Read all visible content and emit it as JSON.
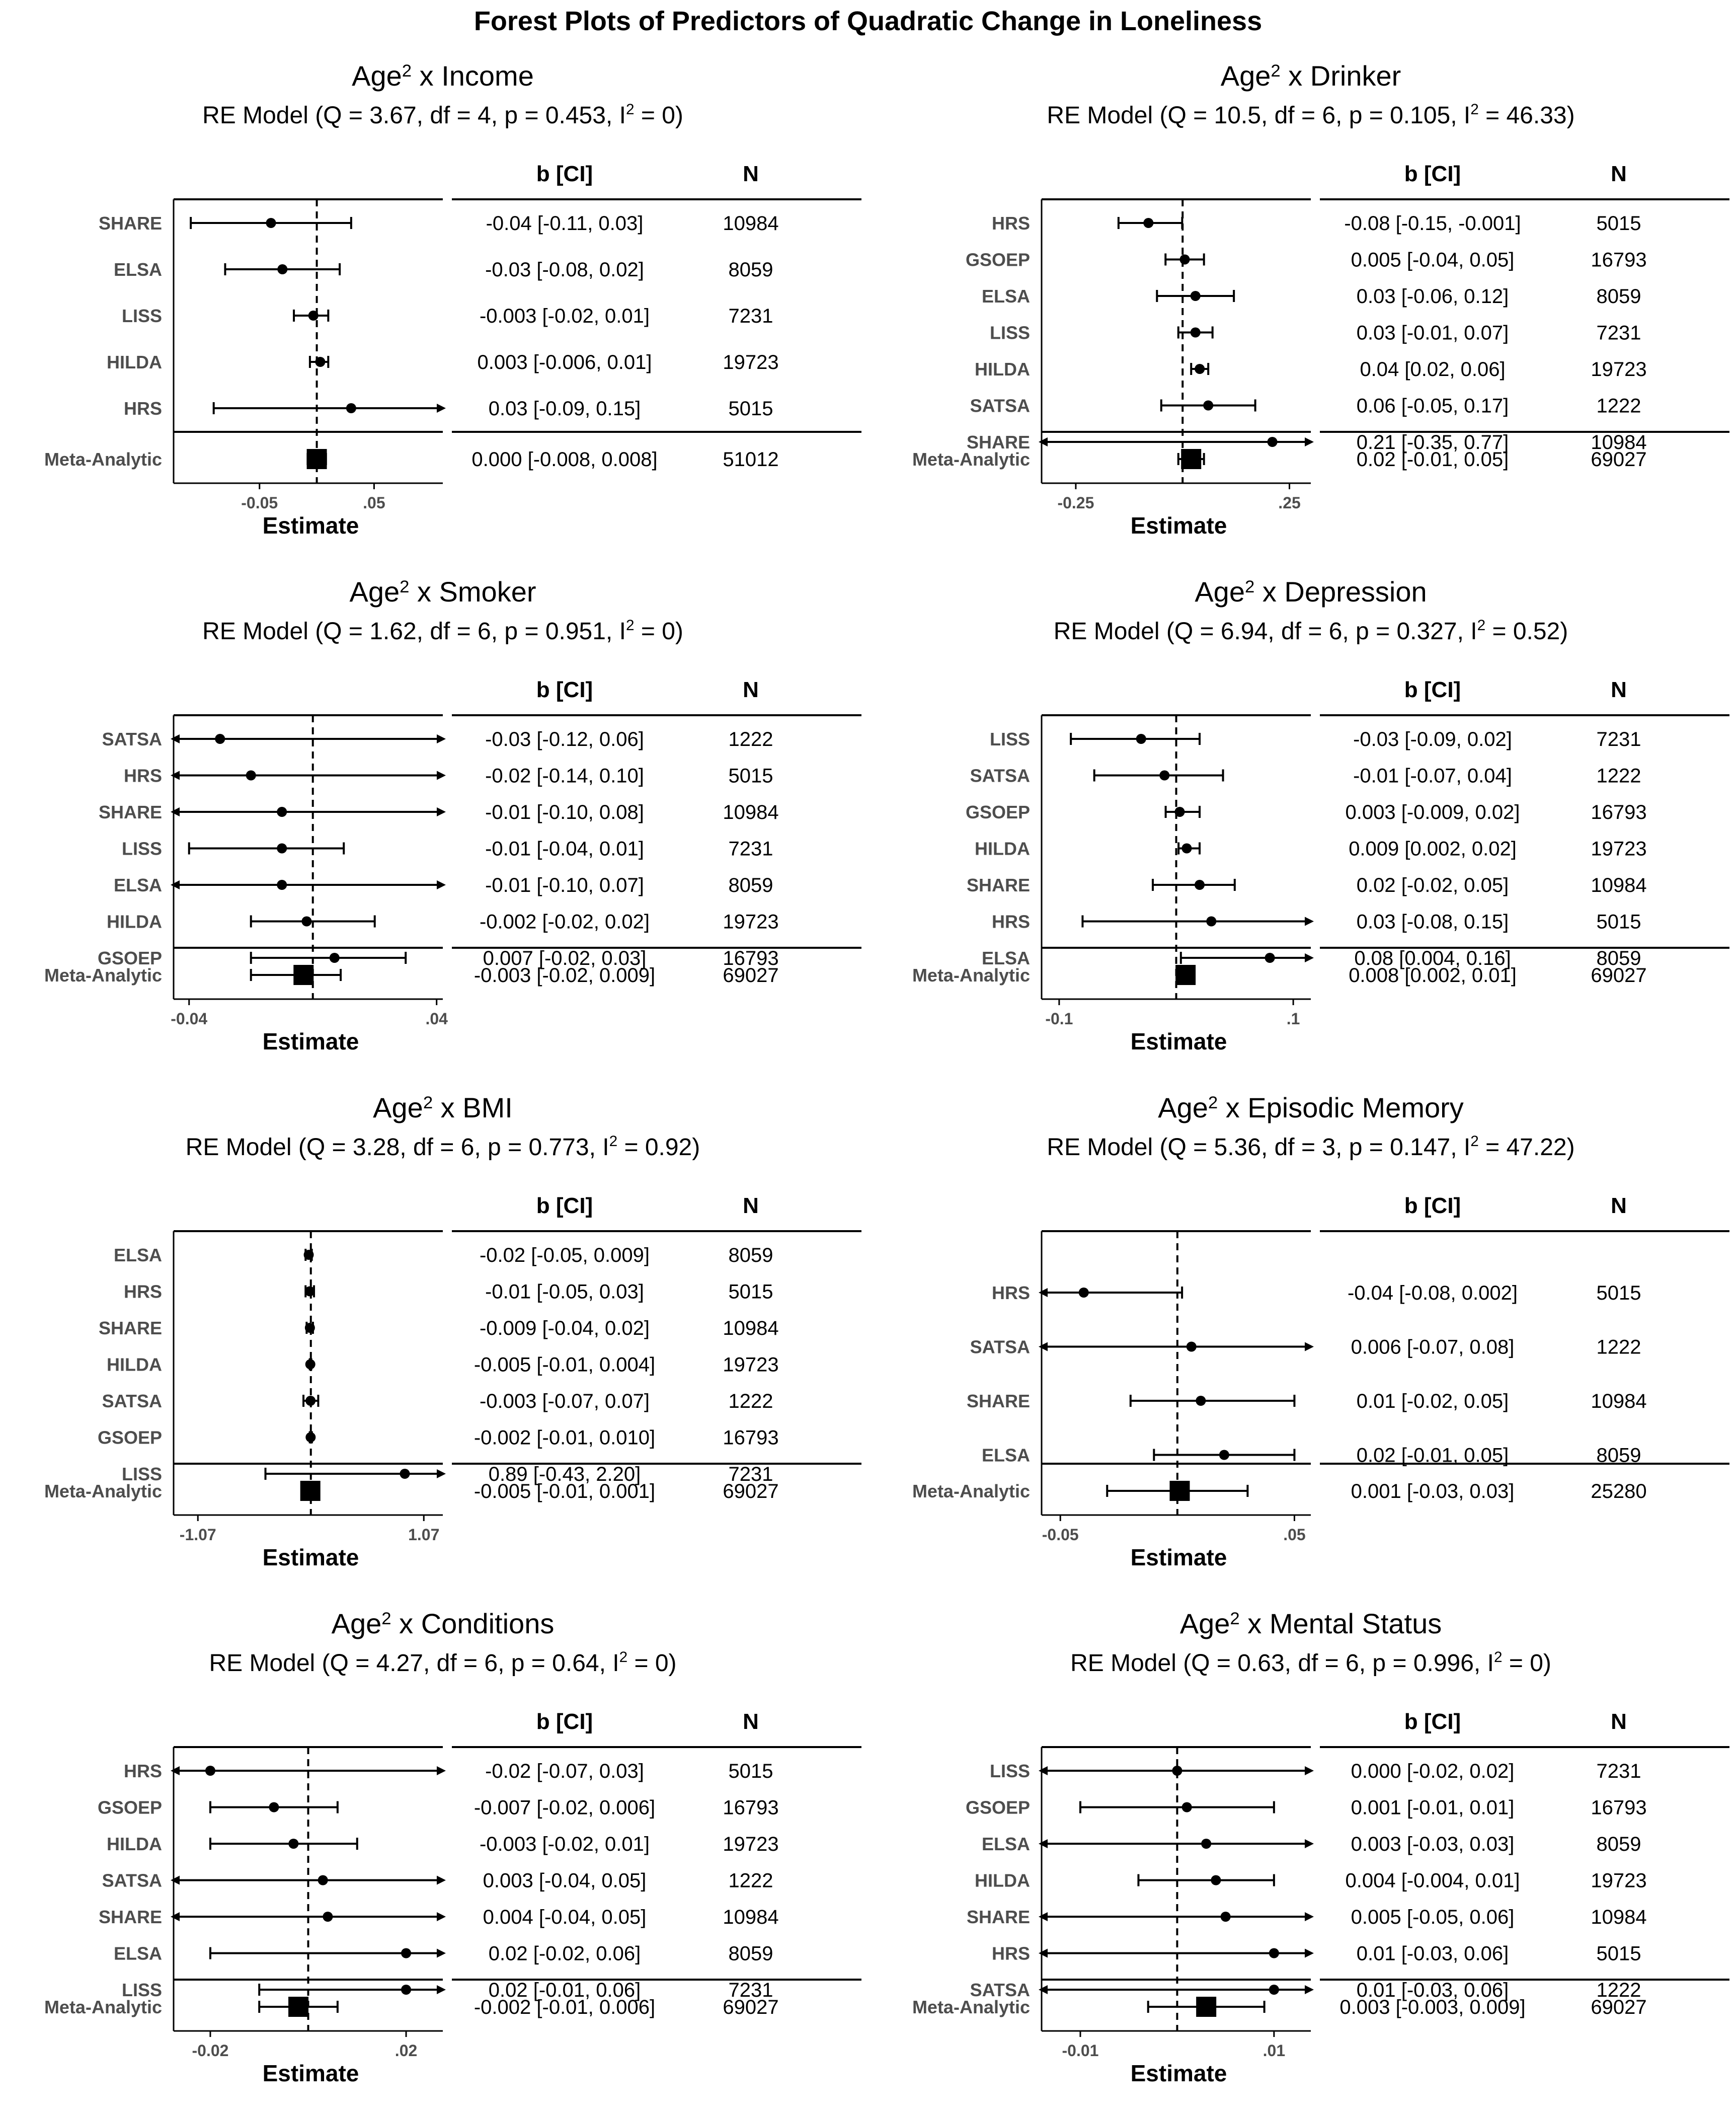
{
  "figure_title": "Forest Plots of Predictors of Quadratic Change in Loneliness",
  "table_headers": {
    "estimate": "b [CI]",
    "n": "N"
  },
  "colors": {
    "ink": "#000000",
    "study_label": "#4d4d4d"
  },
  "chart_data": [
    {
      "type": "forest",
      "title_prefix": "Age",
      "title_sup": "2",
      "title_suffix": " x Income",
      "subtitle_pre": "RE Model (Q = 3.67, df = 4, p = 0.453, I",
      "subtitle_sup": "2",
      "subtitle_post": " = 0)",
      "xlabel": "Estimate",
      "xlim": [
        -0.125,
        0.11
      ],
      "xticks": [
        -0.05,
        0.05
      ],
      "xtick_labels": [
        "-0.05",
        ".05"
      ],
      "studies": [
        {
          "label": "SHARE",
          "est": -0.04,
          "lo": -0.11,
          "hi": 0.03,
          "ci_text": "-0.04 [-0.11, 0.03]",
          "n": "10984"
        },
        {
          "label": "ELSA",
          "est": -0.03,
          "lo": -0.08,
          "hi": 0.02,
          "ci_text": "-0.03 [-0.08, 0.02]",
          "n": "8059"
        },
        {
          "label": "LISS",
          "est": -0.003,
          "lo": -0.02,
          "hi": 0.01,
          "ci_text": "-0.003 [-0.02, 0.01]",
          "n": "7231"
        },
        {
          "label": "HILDA",
          "est": 0.003,
          "lo": -0.006,
          "hi": 0.01,
          "ci_text": "0.003 [-0.006, 0.01]",
          "n": "19723"
        },
        {
          "label": "HRS",
          "est": 0.03,
          "lo": -0.09,
          "hi": 0.15,
          "ci_text": "0.03 [-0.09, 0.15]",
          "n": "5015"
        }
      ],
      "meta": {
        "label": "Meta-Analytic",
        "est": 0.0,
        "lo": -0.008,
        "hi": 0.008,
        "ci_text": "0.000 [-0.008, 0.008]",
        "n": "51012"
      }
    },
    {
      "type": "forest",
      "title_prefix": "Age",
      "title_sup": "2",
      "title_suffix": " x Drinker",
      "subtitle_pre": "RE Model (Q = 10.5, df = 6, p = 0.105, I",
      "subtitle_sup": "2",
      "subtitle_post": " = 46.33)",
      "xlabel": "Estimate",
      "xlim": [
        -0.33,
        0.3
      ],
      "xticks": [
        -0.25,
        0.25
      ],
      "xtick_labels": [
        "-0.25",
        ".25"
      ],
      "studies": [
        {
          "label": "HRS",
          "est": -0.08,
          "lo": -0.15,
          "hi": -0.001,
          "ci_text": "-0.08 [-0.15, -0.001]",
          "n": "5015"
        },
        {
          "label": "GSOEP",
          "est": 0.005,
          "lo": -0.04,
          "hi": 0.05,
          "ci_text": "0.005 [-0.04, 0.05]",
          "n": "16793"
        },
        {
          "label": "ELSA",
          "est": 0.03,
          "lo": -0.06,
          "hi": 0.12,
          "ci_text": "0.03 [-0.06, 0.12]",
          "n": "8059"
        },
        {
          "label": "LISS",
          "est": 0.03,
          "lo": -0.01,
          "hi": 0.07,
          "ci_text": "0.03 [-0.01, 0.07]",
          "n": "7231"
        },
        {
          "label": "HILDA",
          "est": 0.04,
          "lo": 0.02,
          "hi": 0.06,
          "ci_text": "0.04 [0.02, 0.06]",
          "n": "19723"
        },
        {
          "label": "SATSA",
          "est": 0.06,
          "lo": -0.05,
          "hi": 0.17,
          "ci_text": "0.06 [-0.05, 0.17]",
          "n": "1222"
        },
        {
          "label": "SHARE",
          "est": 0.21,
          "lo": -0.35,
          "hi": 0.77,
          "ci_text": "0.21 [-0.35, 0.77]",
          "n": "10984"
        }
      ],
      "meta": {
        "label": "Meta-Analytic",
        "est": 0.02,
        "lo": -0.01,
        "hi": 0.05,
        "ci_text": "0.02 [-0.01, 0.05]",
        "n": "69027"
      }
    },
    {
      "type": "forest",
      "title_prefix": "Age",
      "title_sup": "2",
      "title_suffix": " x Smoker",
      "subtitle_pre": "RE Model (Q = 1.62, df = 6, p = 0.951, I",
      "subtitle_sup": "2",
      "subtitle_post": " = 0)",
      "xlabel": "Estimate",
      "xlim": [
        -0.045,
        0.042
      ],
      "xticks": [
        -0.04,
        0.04
      ],
      "xtick_labels": [
        "-0.04",
        ".04"
      ],
      "studies": [
        {
          "label": "SATSA",
          "est": -0.03,
          "lo": -0.12,
          "hi": 0.06,
          "ci_text": "-0.03 [-0.12, 0.06]",
          "n": "1222"
        },
        {
          "label": "HRS",
          "est": -0.02,
          "lo": -0.14,
          "hi": 0.1,
          "ci_text": "-0.02 [-0.14, 0.10]",
          "n": "5015"
        },
        {
          "label": "SHARE",
          "est": -0.01,
          "lo": -0.1,
          "hi": 0.08,
          "ci_text": "-0.01 [-0.10, 0.08]",
          "n": "10984"
        },
        {
          "label": "LISS",
          "est": -0.01,
          "lo": -0.04,
          "hi": 0.01,
          "ci_text": "-0.01 [-0.04, 0.01]",
          "n": "7231"
        },
        {
          "label": "ELSA",
          "est": -0.01,
          "lo": -0.1,
          "hi": 0.07,
          "ci_text": "-0.01 [-0.10, 0.07]",
          "n": "8059"
        },
        {
          "label": "HILDA",
          "est": -0.002,
          "lo": -0.02,
          "hi": 0.02,
          "ci_text": "-0.002 [-0.02, 0.02]",
          "n": "19723"
        },
        {
          "label": "GSOEP",
          "est": 0.007,
          "lo": -0.02,
          "hi": 0.03,
          "ci_text": "0.007 [-0.02, 0.03]",
          "n": "16793"
        }
      ],
      "meta": {
        "label": "Meta-Analytic",
        "est": -0.003,
        "lo": -0.02,
        "hi": 0.009,
        "ci_text": "-0.003 [-0.02, 0.009]",
        "n": "69027"
      }
    },
    {
      "type": "forest",
      "title_prefix": "Age",
      "title_sup": "2",
      "title_suffix": " x Depression",
      "subtitle_pre": "RE Model (Q = 6.94, df = 6, p = 0.327, I",
      "subtitle_sup": "2",
      "subtitle_post": " = 0.52)",
      "xlabel": "Estimate",
      "xlim": [
        -0.115,
        0.115
      ],
      "xticks": [
        -0.1,
        0.1
      ],
      "xtick_labels": [
        "-0.1",
        ".1"
      ],
      "studies": [
        {
          "label": "LISS",
          "est": -0.03,
          "lo": -0.09,
          "hi": 0.02,
          "ci_text": "-0.03 [-0.09, 0.02]",
          "n": "7231"
        },
        {
          "label": "SATSA",
          "est": -0.01,
          "lo": -0.07,
          "hi": 0.04,
          "ci_text": "-0.01 [-0.07, 0.04]",
          "n": "1222"
        },
        {
          "label": "GSOEP",
          "est": 0.003,
          "lo": -0.009,
          "hi": 0.02,
          "ci_text": "0.003 [-0.009, 0.02]",
          "n": "16793"
        },
        {
          "label": "HILDA",
          "est": 0.009,
          "lo": 0.002,
          "hi": 0.02,
          "ci_text": "0.009 [0.002, 0.02]",
          "n": "19723"
        },
        {
          "label": "SHARE",
          "est": 0.02,
          "lo": -0.02,
          "hi": 0.05,
          "ci_text": "0.02 [-0.02, 0.05]",
          "n": "10984"
        },
        {
          "label": "HRS",
          "est": 0.03,
          "lo": -0.08,
          "hi": 0.15,
          "ci_text": "0.03 [-0.08, 0.15]",
          "n": "5015"
        },
        {
          "label": "ELSA",
          "est": 0.08,
          "lo": 0.004,
          "hi": 0.16,
          "ci_text": "0.08 [0.004, 0.16]",
          "n": "8059"
        }
      ],
      "meta": {
        "label": "Meta-Analytic",
        "est": 0.008,
        "lo": 0.002,
        "hi": 0.01,
        "ci_text": "0.008 [0.002, 0.01]",
        "n": "69027"
      }
    },
    {
      "type": "forest",
      "title_prefix": "Age",
      "title_sup": "2",
      "title_suffix": " x BMI",
      "subtitle_pre": "RE Model (Q = 3.28, df = 6, p = 0.773, I",
      "subtitle_sup": "2",
      "subtitle_post": " = 0.92)",
      "xlabel": "Estimate",
      "xlim": [
        -1.3,
        1.25
      ],
      "xticks": [
        -1.07,
        1.07
      ],
      "xtick_labels": [
        "-1.07",
        "1.07"
      ],
      "studies": [
        {
          "label": "ELSA",
          "est": -0.02,
          "lo": -0.05,
          "hi": 0.009,
          "ci_text": "-0.02 [-0.05, 0.009]",
          "n": "8059"
        },
        {
          "label": "HRS",
          "est": -0.01,
          "lo": -0.05,
          "hi": 0.03,
          "ci_text": "-0.01 [-0.05, 0.03]",
          "n": "5015"
        },
        {
          "label": "SHARE",
          "est": -0.009,
          "lo": -0.04,
          "hi": 0.02,
          "ci_text": "-0.009 [-0.04, 0.02]",
          "n": "10984"
        },
        {
          "label": "HILDA",
          "est": -0.005,
          "lo": -0.01,
          "hi": 0.004,
          "ci_text": "-0.005 [-0.01, 0.004]",
          "n": "19723"
        },
        {
          "label": "SATSA",
          "est": -0.003,
          "lo": -0.07,
          "hi": 0.07,
          "ci_text": "-0.003 [-0.07, 0.07]",
          "n": "1222"
        },
        {
          "label": "GSOEP",
          "est": -0.002,
          "lo": -0.01,
          "hi": 0.01,
          "ci_text": "-0.002 [-0.01, 0.010]",
          "n": "16793"
        },
        {
          "label": "LISS",
          "est": 0.89,
          "lo": -0.43,
          "hi": 2.2,
          "ci_text": "0.89 [-0.43, 2.20]",
          "n": "7231"
        }
      ],
      "meta": {
        "label": "Meta-Analytic",
        "est": -0.005,
        "lo": -0.01,
        "hi": 0.001,
        "ci_text": "-0.005 [-0.01, 0.001]",
        "n": "69027"
      }
    },
    {
      "type": "forest",
      "title_prefix": "Age",
      "title_sup": "2",
      "title_suffix": " x Episodic Memory",
      "subtitle_pre": "RE Model (Q = 5.36, df = 3, p = 0.147, I",
      "subtitle_sup": "2",
      "subtitle_post": " = 47.22)",
      "xlabel": "Estimate",
      "xlim": [
        -0.058,
        0.057
      ],
      "xticks": [
        -0.05,
        0.05
      ],
      "xtick_labels": [
        "-0.05",
        ".05"
      ],
      "studies": [
        {
          "label": "HRS",
          "est": -0.04,
          "lo": -0.08,
          "hi": 0.002,
          "ci_text": "-0.04 [-0.08, 0.002]",
          "n": "5015"
        },
        {
          "label": "SATSA",
          "est": 0.006,
          "lo": -0.07,
          "hi": 0.08,
          "ci_text": "0.006 [-0.07, 0.08]",
          "n": "1222"
        },
        {
          "label": "SHARE",
          "est": 0.01,
          "lo": -0.02,
          "hi": 0.05,
          "ci_text": "0.01 [-0.02, 0.05]",
          "n": "10984"
        },
        {
          "label": "ELSA",
          "est": 0.02,
          "lo": -0.01,
          "hi": 0.05,
          "ci_text": "0.02 [-0.01, 0.05]",
          "n": "8059"
        }
      ],
      "meta": {
        "label": "Meta-Analytic",
        "est": 0.001,
        "lo": -0.03,
        "hi": 0.03,
        "ci_text": "0.001 [-0.03, 0.03]",
        "n": "25280"
      }
    },
    {
      "type": "forest",
      "title_prefix": "Age",
      "title_sup": "2",
      "title_suffix": " x Conditions",
      "subtitle_pre": "RE Model (Q = 4.27, df = 6, p = 0.64, I",
      "subtitle_sup": "2",
      "subtitle_post": " = 0)",
      "xlabel": "Estimate",
      "xlim": [
        -0.0275,
        0.0275
      ],
      "xticks": [
        -0.02,
        0.02
      ],
      "xtick_labels": [
        "-0.02",
        ".02"
      ],
      "studies": [
        {
          "label": "HRS",
          "est": -0.02,
          "lo": -0.07,
          "hi": 0.03,
          "ci_text": "-0.02 [-0.07, 0.03]",
          "n": "5015"
        },
        {
          "label": "GSOEP",
          "est": -0.007,
          "lo": -0.02,
          "hi": 0.006,
          "ci_text": "-0.007 [-0.02, 0.006]",
          "n": "16793"
        },
        {
          "label": "HILDA",
          "est": -0.003,
          "lo": -0.02,
          "hi": 0.01,
          "ci_text": "-0.003 [-0.02, 0.01]",
          "n": "19723"
        },
        {
          "label": "SATSA",
          "est": 0.003,
          "lo": -0.04,
          "hi": 0.05,
          "ci_text": "0.003 [-0.04, 0.05]",
          "n": "1222"
        },
        {
          "label": "SHARE",
          "est": 0.004,
          "lo": -0.04,
          "hi": 0.05,
          "ci_text": "0.004 [-0.04, 0.05]",
          "n": "10984"
        },
        {
          "label": "ELSA",
          "est": 0.02,
          "lo": -0.02,
          "hi": 0.06,
          "ci_text": "0.02 [-0.02, 0.06]",
          "n": "8059"
        },
        {
          "label": "LISS",
          "est": 0.02,
          "lo": -0.01,
          "hi": 0.06,
          "ci_text": "0.02 [-0.01, 0.06]",
          "n": "7231"
        }
      ],
      "meta": {
        "label": "Meta-Analytic",
        "est": -0.002,
        "lo": -0.01,
        "hi": 0.006,
        "ci_text": "-0.002 [-0.01, 0.006]",
        "n": "69027"
      }
    },
    {
      "type": "forest",
      "title_prefix": "Age",
      "title_sup": "2",
      "title_suffix": " x Mental Status",
      "subtitle_pre": "RE Model (Q = 0.63, df = 6, p = 0.996, I",
      "subtitle_sup": "2",
      "subtitle_post": " = 0)",
      "xlabel": "Estimate",
      "xlim": [
        -0.014,
        0.0138
      ],
      "xticks": [
        -0.01,
        0.01
      ],
      "xtick_labels": [
        "-0.01",
        ".01"
      ],
      "studies": [
        {
          "label": "LISS",
          "est": 0.0,
          "lo": -0.02,
          "hi": 0.02,
          "ci_text": "0.000 [-0.02, 0.02]",
          "n": "7231"
        },
        {
          "label": "GSOEP",
          "est": 0.001,
          "lo": -0.01,
          "hi": 0.01,
          "ci_text": "0.001 [-0.01, 0.01]",
          "n": "16793"
        },
        {
          "label": "ELSA",
          "est": 0.003,
          "lo": -0.03,
          "hi": 0.03,
          "ci_text": "0.003 [-0.03, 0.03]",
          "n": "8059"
        },
        {
          "label": "HILDA",
          "est": 0.004,
          "lo": -0.004,
          "hi": 0.01,
          "ci_text": "0.004 [-0.004, 0.01]",
          "n": "19723"
        },
        {
          "label": "SHARE",
          "est": 0.005,
          "lo": -0.05,
          "hi": 0.06,
          "ci_text": "0.005 [-0.05, 0.06]",
          "n": "10984"
        },
        {
          "label": "HRS",
          "est": 0.01,
          "lo": -0.03,
          "hi": 0.06,
          "ci_text": "0.01 [-0.03, 0.06]",
          "n": "5015"
        },
        {
          "label": "SATSA",
          "est": 0.01,
          "lo": -0.03,
          "hi": 0.06,
          "ci_text": "0.01 [-0.03, 0.06]",
          "n": "1222"
        }
      ],
      "meta": {
        "label": "Meta-Analytic",
        "est": 0.003,
        "lo": -0.003,
        "hi": 0.009,
        "ci_text": "0.003 [-0.003, 0.009]",
        "n": "69027"
      }
    }
  ]
}
